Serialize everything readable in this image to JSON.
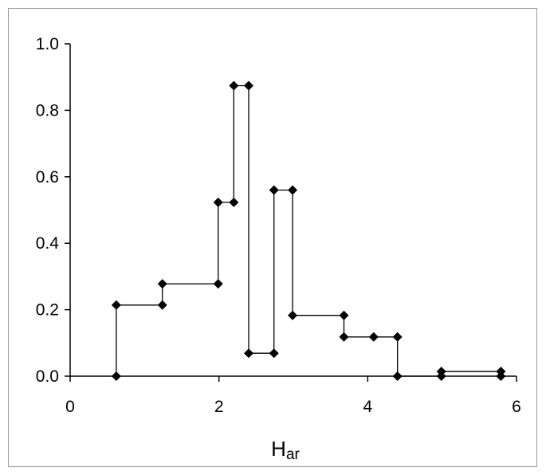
{
  "chart_data": {
    "type": "line",
    "title": "",
    "xlabel": "H",
    "xlabel_subscript": "ar",
    "ylabel": "",
    "xlim": [
      0,
      6
    ],
    "ylim": [
      0,
      1.0
    ],
    "x_ticks": [
      "0",
      "2",
      "4",
      "6"
    ],
    "y_ticks": [
      "0.0",
      "0.2",
      "0.4",
      "0.6",
      "0.8",
      "1.0"
    ],
    "grid": false,
    "legend": "none",
    "line_color": "#000000",
    "marker": "diamond",
    "series": [
      {
        "x": [
          0.62,
          0.62,
          1.24,
          1.24,
          1.99,
          1.99,
          2.2,
          2.2,
          2.4,
          2.4,
          2.74,
          2.74,
          2.99,
          2.99,
          3.68,
          3.68,
          4.08,
          4.4,
          4.4,
          4.99,
          4.99,
          5.79,
          5.79
        ],
        "y": [
          0.0,
          0.214,
          0.214,
          0.278,
          0.278,
          0.523,
          0.523,
          0.874,
          0.874,
          0.069,
          0.069,
          0.56,
          0.56,
          0.183,
          0.183,
          0.118,
          0.118,
          0.118,
          0.0,
          0.0,
          0.014,
          0.014,
          0.0
        ]
      }
    ]
  }
}
